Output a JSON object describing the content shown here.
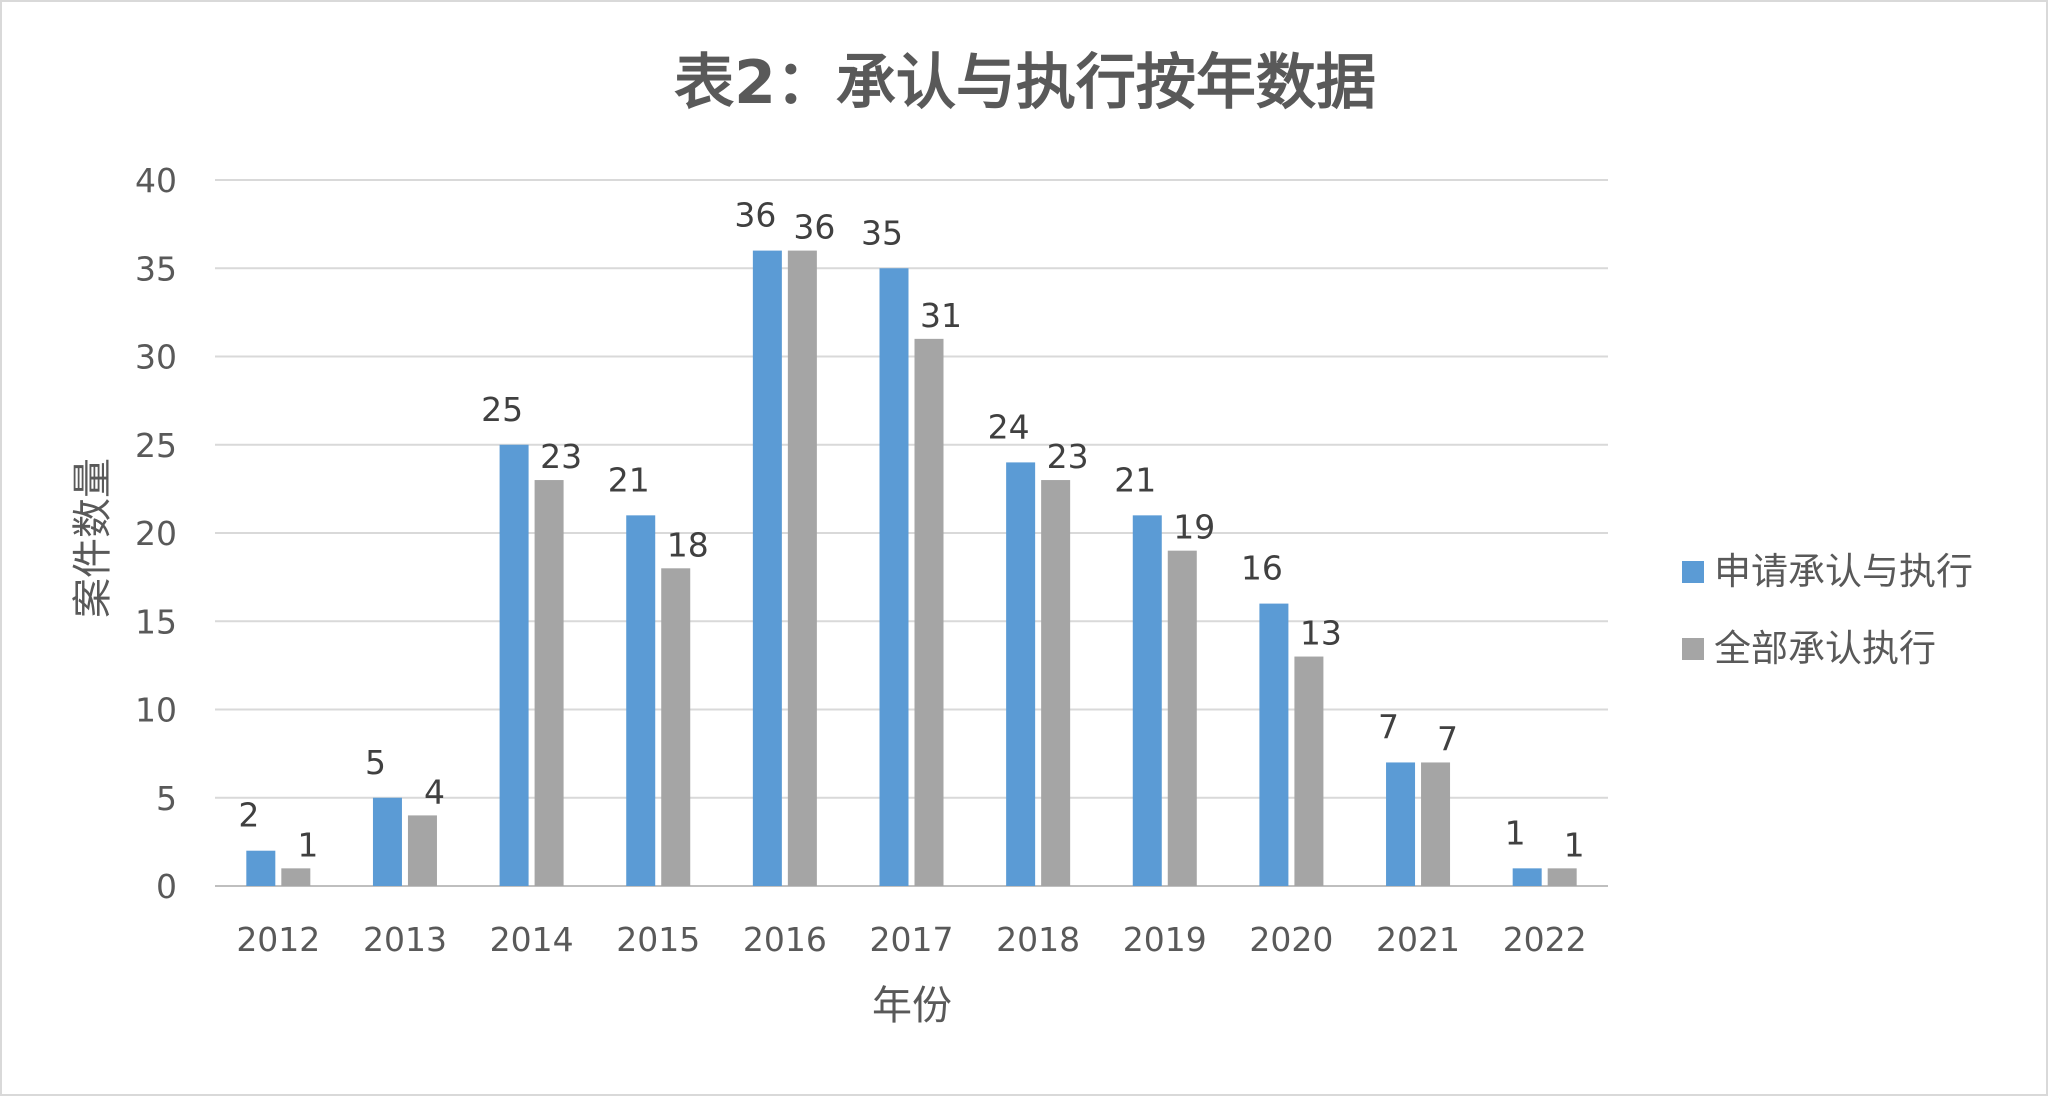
{
  "chart_data": {
    "type": "bar",
    "title": "表2：承认与执行按年数据",
    "xlabel": "年份",
    "ylabel": "案件数量",
    "categories": [
      "2012",
      "2013",
      "2014",
      "2015",
      "2016",
      "2017",
      "2018",
      "2019",
      "2020",
      "2021",
      "2022"
    ],
    "series": [
      {
        "name": "申请承认与执行",
        "color": "#5b9bd5",
        "values": [
          2,
          5,
          25,
          21,
          36,
          35,
          24,
          21,
          16,
          7,
          1
        ]
      },
      {
        "name": "全部承认执行",
        "color": "#a5a5a5",
        "values": [
          1,
          4,
          23,
          18,
          36,
          31,
          23,
          19,
          13,
          7,
          1
        ]
      }
    ],
    "ylim": [
      0,
      40
    ],
    "yticks": [
      0,
      5,
      10,
      15,
      20,
      25,
      30,
      35,
      40
    ],
    "grid": true,
    "gridline_color": "#d9d9d9",
    "legend_position": "right",
    "data_labels": true
  }
}
